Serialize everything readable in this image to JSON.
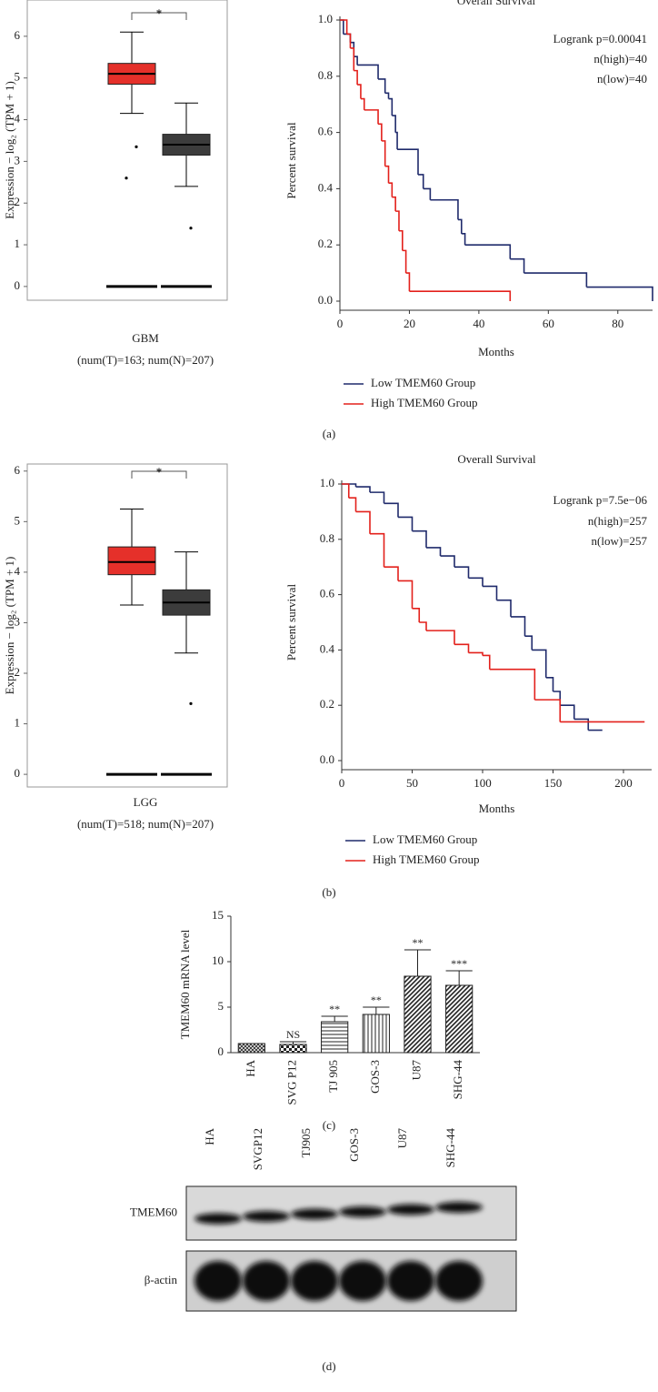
{
  "panel_labels": [
    "(a)",
    "(b)",
    "(c)",
    "(d)"
  ],
  "chart_data": [
    {
      "type": "box",
      "ylabel": "Expression − log₂ (TPM + 1)",
      "categories": [
        "GBM"
      ],
      "xlabel": "(num(T)=163; num(N)=207)",
      "significance": "*",
      "ylim": [
        -0.33,
        6.87
      ],
      "yticks": [
        0,
        1,
        2,
        3,
        4,
        5,
        6
      ],
      "boxes": [
        {
          "color": "#e5302a",
          "whislo": 4.15,
          "q1": 4.85,
          "med": 5.1,
          "q3": 5.35,
          "whishi": 6.1,
          "outliers": [
            3.35,
            2.6
          ]
        },
        {
          "color": "#3c3c3c",
          "whislo": 2.4,
          "q1": 3.15,
          "med": 3.4,
          "q3": 3.65,
          "whishi": 4.4,
          "outliers": [
            1.4
          ]
        }
      ],
      "baseline_values": [
        0,
        0
      ]
    },
    {
      "type": "survival",
      "title": "Overall Survival",
      "xlabel": "Months",
      "ylabel": "Percent survival",
      "annotations": [
        "Logrank p=0.00041",
        "n(high)=40",
        "n(low)=40"
      ],
      "xlim": [
        0,
        90
      ],
      "xticks": [
        0,
        20,
        40,
        60,
        80
      ],
      "ylim": [
        0,
        1
      ],
      "yticks": [
        {
          "value": 0,
          "label": "0.0"
        },
        {
          "value": 0.2,
          "label": "0.2"
        },
        {
          "value": 0.4,
          "label": "0.4"
        },
        {
          "value": 0.6,
          "label": "0.6"
        },
        {
          "value": 0.8,
          "label": "0.8"
        },
        {
          "value": 1,
          "label": "1.0"
        }
      ],
      "series": [
        {
          "name": "Low TMEM60 Group",
          "color": "#1f2a6b",
          "x": [
            0,
            1,
            3,
            4,
            5,
            11,
            13,
            14,
            15,
            16,
            16.5,
            22.5,
            24,
            26,
            34,
            35,
            36,
            49,
            53,
            71,
            90
          ],
          "values": [
            1,
            0.95,
            0.92,
            0.87,
            0.84,
            0.79,
            0.74,
            0.72,
            0.66,
            0.6,
            0.54,
            0.45,
            0.4,
            0.36,
            0.29,
            0.24,
            0.2,
            0.15,
            0.1,
            0.05,
            0
          ]
        },
        {
          "name": "High TMEM60 Group",
          "color": "#e3201b",
          "x": [
            0,
            2,
            3,
            4,
            5,
            6,
            7,
            11,
            12,
            13,
            14,
            15,
            16,
            17,
            18,
            19,
            20,
            49
          ],
          "values": [
            1,
            0.95,
            0.9,
            0.82,
            0.77,
            0.72,
            0.68,
            0.63,
            0.57,
            0.48,
            0.42,
            0.37,
            0.32,
            0.25,
            0.18,
            0.1,
            0.035,
            0
          ]
        }
      ]
    },
    {
      "type": "box",
      "ylabel": "Expression − log₂ (TPM + 1)",
      "categories": [
        "LGG"
      ],
      "xlabel": "(num(T)=518; num(N)=207)",
      "significance": "*",
      "ylim": [
        -0.25,
        6.14
      ],
      "yticks": [
        0,
        1,
        2,
        3,
        4,
        5,
        6
      ],
      "boxes": [
        {
          "color": "#e5302a",
          "whislo": 3.35,
          "q1": 3.95,
          "med": 4.2,
          "q3": 4.5,
          "whishi": 5.25,
          "outliers": []
        },
        {
          "color": "#3c3c3c",
          "whislo": 2.4,
          "q1": 3.15,
          "med": 3.4,
          "q3": 3.65,
          "whishi": 4.4,
          "outliers": [
            1.4
          ]
        }
      ],
      "baseline_values": [
        0,
        0
      ]
    },
    {
      "type": "survival",
      "title": "Overall Survival",
      "xlabel": "Months",
      "ylabel": "Percent survival",
      "annotations": [
        "Logrank p=7.5e−06",
        "n(high)=257",
        "n(low)=257"
      ],
      "xlim": [
        0,
        220
      ],
      "xticks": [
        0,
        50,
        100,
        150,
        200
      ],
      "ylim": [
        0,
        1
      ],
      "yticks": [
        {
          "value": 0,
          "label": "0.0"
        },
        {
          "value": 0.2,
          "label": "0.2"
        },
        {
          "value": 0.4,
          "label": "0.4"
        },
        {
          "value": 0.6,
          "label": "0.6"
        },
        {
          "value": 0.8,
          "label": "0.8"
        },
        {
          "value": 1,
          "label": "1.0"
        }
      ],
      "series": [
        {
          "name": "Low TMEM60 Group",
          "color": "#1f2a6b",
          "x": [
            0,
            10,
            20,
            30,
            40,
            50,
            60,
            70,
            80,
            90,
            100,
            110,
            120,
            130,
            135,
            145,
            150,
            155,
            165,
            175,
            185
          ],
          "values": [
            1,
            0.99,
            0.97,
            0.93,
            0.88,
            0.83,
            0.77,
            0.74,
            0.7,
            0.66,
            0.63,
            0.58,
            0.52,
            0.45,
            0.4,
            0.3,
            0.25,
            0.2,
            0.15,
            0.11,
            0.11
          ]
        },
        {
          "name": "High TMEM60 Group",
          "color": "#e3201b",
          "x": [
            0,
            5,
            10,
            20,
            30,
            40,
            50,
            55,
            60,
            80,
            90,
            100,
            105,
            137,
            155,
            215
          ],
          "values": [
            1,
            0.95,
            0.9,
            0.82,
            0.7,
            0.65,
            0.55,
            0.5,
            0.47,
            0.42,
            0.39,
            0.38,
            0.33,
            0.22,
            0.14,
            0.14
          ]
        }
      ]
    },
    {
      "type": "bar",
      "ylabel": "TMEM60 mRNA level",
      "categories": [
        "HA",
        "SVG P12",
        "TJ 905",
        "GOS-3",
        "U87",
        "SHG-44"
      ],
      "values": [
        1,
        0.9,
        3.4,
        4.2,
        8.4,
        7.4
      ],
      "errors": [
        0,
        0.3,
        0.6,
        0.8,
        2.9,
        1.6
      ],
      "annotations": [
        null,
        "NS",
        "**",
        "**",
        "**",
        "***"
      ],
      "patterns": [
        "crosshatch",
        "checker",
        "horizontal",
        "vertical",
        "diagonal",
        "diagonal"
      ],
      "ylim": [
        0,
        15
      ],
      "yticks": [
        0,
        5,
        10,
        15
      ]
    },
    {
      "type": "blot",
      "lanes": [
        "HA",
        "SVGP12",
        "TJ905",
        "GOS-3",
        "U87",
        "SHG-44"
      ],
      "rows": [
        "TMEM60",
        "β-actin"
      ]
    }
  ]
}
